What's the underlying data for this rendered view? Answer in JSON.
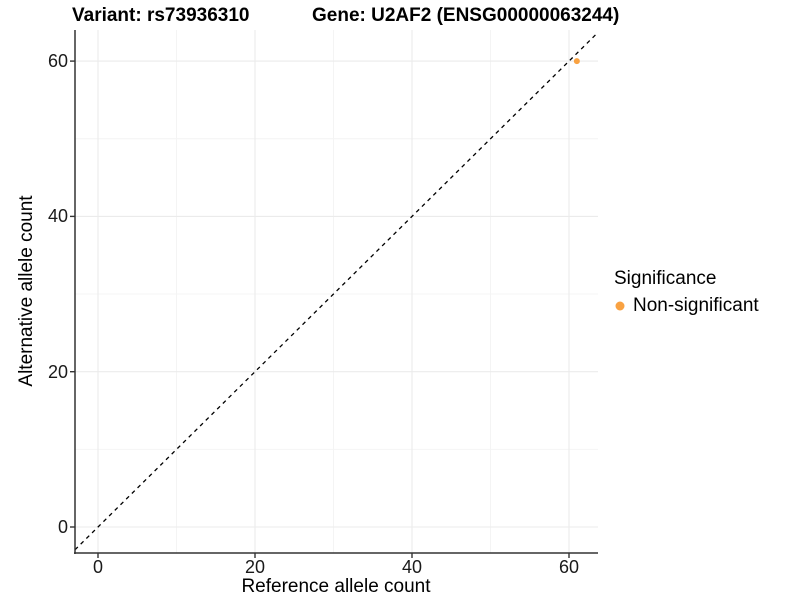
{
  "chart_data": {
    "type": "scatter",
    "title_left": "Variant: rs73936310",
    "title_right": "Gene: U2AF2 (ENSG00000063244)",
    "xlabel": "Reference allele count",
    "ylabel": "Alternative allele count",
    "x_ticks": [
      "0",
      "20",
      "40",
      "60"
    ],
    "y_ticks": [
      "0",
      "20",
      "40",
      "60"
    ],
    "x_tick_values": [
      0,
      20,
      40,
      60
    ],
    "y_tick_values": [
      0,
      20,
      40,
      60
    ],
    "minor_tick_values": [
      10,
      30,
      50
    ],
    "xlim": [
      -3,
      64
    ],
    "ylim": [
      -3.3,
      64
    ],
    "grid": true,
    "legend_position": "right",
    "identity_line": {
      "slope": 1,
      "intercept": 0,
      "style": "dashed",
      "color": "#000000"
    },
    "series": [
      {
        "name": "Non-significant",
        "color": "#F9A242",
        "points": [
          {
            "x": 61,
            "y": 60
          }
        ]
      }
    ],
    "legend": {
      "title": "Significance",
      "items": [
        {
          "label": "Non-significant",
          "color": "#F9A242"
        }
      ]
    },
    "colors": {
      "axis_line": "#333333",
      "grid_major": "#EBEBEB",
      "grid_minor": "#F4F4F4",
      "tick_text": "#1a1a1a"
    }
  }
}
